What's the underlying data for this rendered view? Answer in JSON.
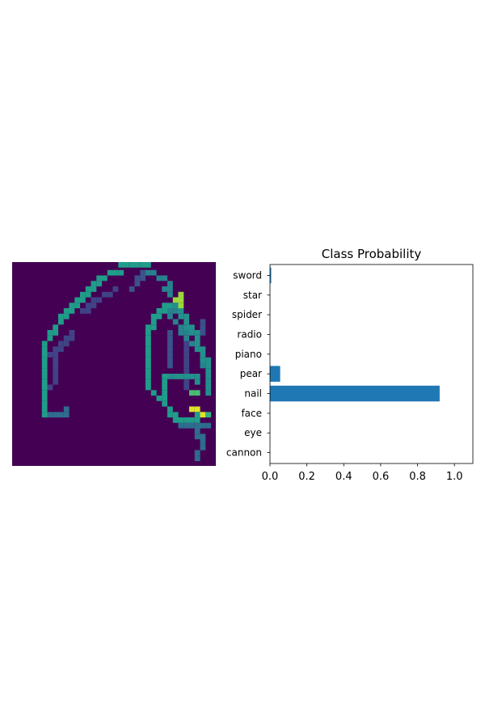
{
  "chart_data": [
    {
      "type": "heatmap",
      "title": "",
      "rows": 28,
      "cols": 28,
      "colormap": "viridis",
      "axes": "off",
      "strokes": [
        {
          "p": [
            [
              5,
              27
            ],
            [
              5,
              20
            ],
            [
              5,
              14
            ],
            [
              7,
              11
            ],
            [
              9,
              8
            ],
            [
              11,
              6
            ],
            [
              13,
              4
            ],
            [
              15,
              2
            ],
            [
              17,
              1
            ],
            [
              20,
              0
            ],
            [
              24,
              0
            ]
          ],
          "v": 0.55
        },
        {
          "p": [
            [
              5,
              27
            ],
            [
              6,
              27
            ],
            [
              8,
              27
            ],
            [
              9,
              26
            ]
          ],
          "v": 0.35
        },
        {
          "p": [
            [
              24,
              0
            ],
            [
              24,
              1
            ],
            [
              27,
              2
            ],
            [
              28,
              3
            ],
            [
              27,
              4
            ],
            [
              28,
              5
            ],
            [
              29,
              6
            ],
            [
              28,
              9
            ],
            [
              30,
              11
            ],
            [
              31,
              13
            ],
            [
              32,
              14
            ],
            [
              34,
              16
            ],
            [
              34,
              18
            ],
            [
              36,
              19
            ],
            [
              35,
              21
            ],
            [
              36,
              22
            ],
            [
              35,
              23
            ]
          ],
          "v": 0.45
        },
        {
          "p": [
            [
              33,
              26
            ],
            [
              33,
              28
            ],
            [
              33,
              30
            ],
            [
              34,
              32
            ],
            [
              33,
              34
            ],
            [
              33,
              35
            ]
          ],
          "v": 0.35
        },
        {
          "p": [
            [
              24,
              22
            ],
            [
              24,
              18
            ],
            [
              24,
              12
            ],
            [
              25,
              9
            ],
            [
              27,
              7
            ],
            [
              29,
              6
            ],
            [
              30,
              5
            ]
          ],
          "v": 0.55
        },
        {
          "p": [
            [
              24,
              22
            ],
            [
              25,
              23
            ],
            [
              27,
              25
            ],
            [
              29,
              27
            ],
            [
              30,
              28
            ],
            [
              32,
              28
            ],
            [
              33,
              27
            ]
          ],
          "v": 0.55
        },
        {
          "p": [
            [
              28,
              20
            ],
            [
              29,
              20
            ],
            [
              32,
              20
            ],
            [
              33,
              20
            ],
            [
              33,
              21
            ]
          ],
          "v": 0.5
        },
        {
          "p": [
            [
              27,
              20
            ],
            [
              27,
              24
            ],
            [
              28,
              27
            ],
            [
              29,
              28
            ]
          ],
          "v": 0.55
        },
        {
          "p": [
            [
              29,
              7
            ],
            [
              30,
              8
            ],
            [
              31,
              10
            ],
            [
              31,
              11
            ],
            [
              33,
              12
            ],
            [
              33,
              14
            ],
            [
              34,
              16
            ],
            [
              35,
              18
            ],
            [
              35,
              20
            ],
            [
              35,
              22
            ],
            [
              36,
              24
            ]
          ],
          "v": 0.5
        },
        {
          "p": [
            [
              30,
              29
            ],
            [
              32,
              29
            ],
            [
              33,
              29
            ],
            [
              34,
              29
            ],
            [
              36,
              29
            ],
            [
              37,
              30
            ],
            [
              37,
              32
            ]
          ],
          "v": 0.35
        },
        {
          "p": [
            [
              30,
              5
            ],
            [
              29,
              6
            ],
            [
              30,
              7
            ]
          ],
          "v": 0.85
        },
        {
          "p": [
            [
              32,
              23
            ],
            [
              33,
              23
            ]
          ],
          "v": 0.7
        },
        {
          "p": [
            [
              32,
              26
            ],
            [
              33,
              26
            ],
            [
              34,
              27
            ]
          ],
          "v": 0.95
        },
        {
          "p": [
            [
              35,
              27
            ],
            [
              36,
              27
            ],
            [
              37,
              28
            ]
          ],
          "v": 0.65
        },
        {
          "p": [
            [
              30,
              8
            ],
            [
              30,
              9
            ]
          ],
          "v": 0.3
        },
        {
          "p": [
            [
              28,
              12
            ],
            [
              28,
              14
            ],
            [
              28,
              16
            ],
            [
              28,
              18
            ]
          ],
          "v": 0.25
        },
        {
          "p": [
            [
              31,
              14
            ],
            [
              31,
              18
            ],
            [
              31,
              22
            ]
          ],
          "v": 0.2
        },
        {
          "p": [
            [
              33,
              14
            ],
            [
              34,
              10
            ]
          ],
          "v": 0.25
        },
        {
          "p": [
            [
              21,
              4
            ],
            [
              22,
              2
            ],
            [
              23,
              1
            ]
          ],
          "v": 0.25
        },
        {
          "p": [
            [
              6,
              16
            ],
            [
              8,
              14
            ],
            [
              10,
              12
            ]
          ],
          "v": 0.2
        },
        {
          "p": [
            [
              6,
              22
            ],
            [
              7,
              20
            ],
            [
              7,
              16
            ]
          ],
          "v": 0.2
        },
        {
          "p": [
            [
              5,
              21
            ],
            [
              5,
              25
            ]
          ],
          "v": 0.5
        },
        {
          "p": [
            [
              12,
              8
            ],
            [
              14,
              6
            ],
            [
              16,
              5
            ],
            [
              18,
              4
            ]
          ],
          "v": 0.2
        }
      ]
    },
    {
      "type": "bar",
      "orientation": "horizontal",
      "title": "Class Probability",
      "categories": [
        "sword",
        "star",
        "spider",
        "radio",
        "piano",
        "pear",
        "nail",
        "face",
        "eye",
        "cannon"
      ],
      "values": [
        0.005,
        0,
        0,
        0,
        0,
        0.055,
        0.92,
        0,
        0,
        0
      ],
      "xlim": [
        0,
        1.1
      ],
      "xticks": [
        "0.0",
        "0.2",
        "0.4",
        "0.6",
        "0.8",
        "1.0"
      ],
      "xlabel": "",
      "ylabel": "",
      "grid": false,
      "bar_color": "#1f77b4"
    }
  ]
}
